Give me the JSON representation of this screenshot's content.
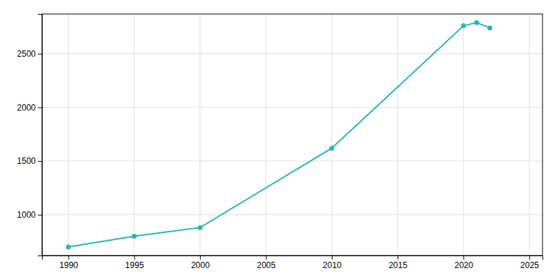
{
  "chart_data": {
    "type": "line",
    "x": [
      1990,
      1995,
      2000,
      2010,
      2020,
      2021,
      2022
    ],
    "values": [
      700,
      800,
      880,
      1620,
      2760,
      2790,
      2740
    ],
    "color": "#29b5b5",
    "marker": "circle",
    "xlim": [
      1988,
      2026
    ],
    "ylim": [
      620,
      2870
    ],
    "xticks": [
      1990,
      1995,
      2000,
      2005,
      2010,
      2015,
      2020,
      2025
    ],
    "yticks": [
      1000,
      1500,
      2000,
      2500
    ],
    "grid": true
  }
}
